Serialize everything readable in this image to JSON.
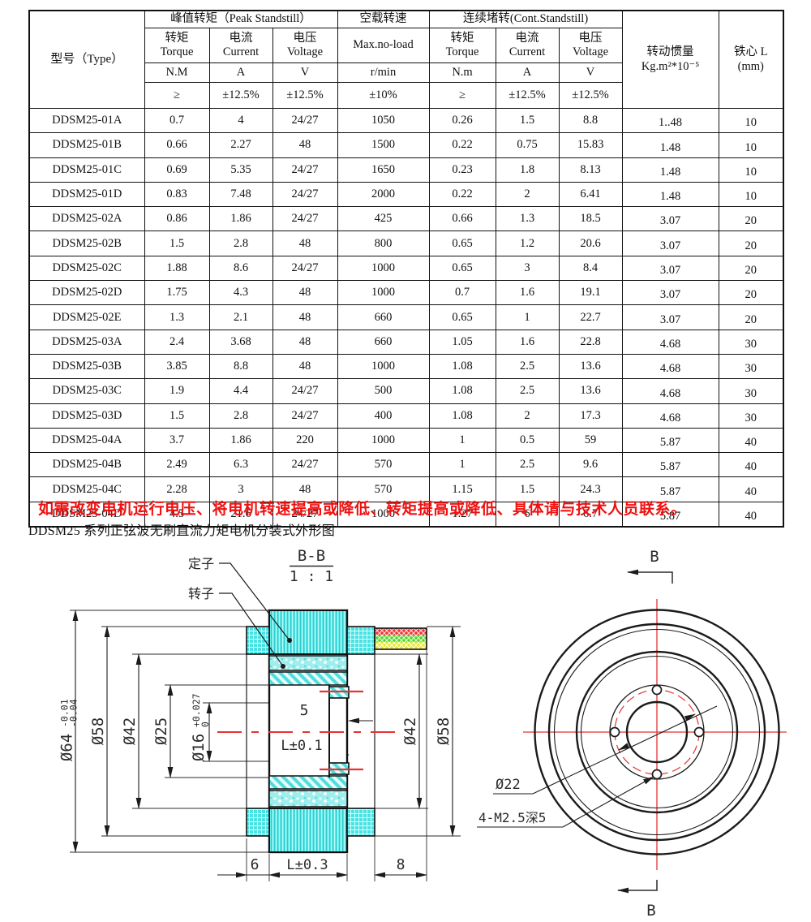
{
  "table": {
    "header": {
      "type": "型号（Type）",
      "peak_group": "峰值转矩（Peak Standstill）",
      "noload_cn": "空载转速",
      "noload_en": "Max.no-load",
      "cont_group": "连续堵转(Cont.Standstill)",
      "torque_cn": "转矩",
      "torque_en": "Torque",
      "current_cn": "电流",
      "current_en": "Current",
      "voltage_cn": "电压",
      "voltage_en": "Voltage",
      "unit_torque_peak": "N.M",
      "unit_current": "A",
      "unit_voltage": "V",
      "unit_speed": "r/min",
      "unit_torque_cont": "N.m",
      "tol_torque": "≥",
      "tol_current": "±12.5%",
      "tol_voltage": "±12.5%",
      "tol_speed": "±10%",
      "inertia_cn": "转动惯量",
      "inertia_unit": "Kg.m²*10⁻⁵",
      "core_cn": "铁心 L",
      "core_unit": "(mm)"
    },
    "rows": [
      [
        "DDSM25-01A",
        "0.7",
        "4",
        "24/27",
        "1050",
        "0.26",
        "1.5",
        "8.8",
        "1..48",
        "10"
      ],
      [
        "DDSM25-01B",
        "0.66",
        "2.27",
        "48",
        "1500",
        "0.22",
        "0.75",
        "15.83",
        "1.48",
        "10"
      ],
      [
        "DDSM25-01C",
        "0.69",
        "5.35",
        "24/27",
        "1650",
        "0.23",
        "1.8",
        "8.13",
        "1.48",
        "10"
      ],
      [
        "DDSM25-01D",
        "0.83",
        "7.48",
        "24/27",
        "2000",
        "0.22",
        "2",
        "6.41",
        "1.48",
        "10"
      ],
      [
        "DDSM25-02A",
        "0.86",
        "1.86",
        "24/27",
        "425",
        "0.66",
        "1.3",
        "18.5",
        "3.07",
        "20"
      ],
      [
        "DDSM25-02B",
        "1.5",
        "2.8",
        "48",
        "800",
        "0.65",
        "1.2",
        "20.6",
        "3.07",
        "20"
      ],
      [
        "DDSM25-02C",
        "1.88",
        "8.6",
        "24/27",
        "1000",
        "0.65",
        "3",
        "8.4",
        "3.07",
        "20"
      ],
      [
        "DDSM25-02D",
        "1.75",
        "4.3",
        "48",
        "1000",
        "0.7",
        "1.6",
        "19.1",
        "3.07",
        "20"
      ],
      [
        "DDSM25-02E",
        "1.3",
        "2.1",
        "48",
        "660",
        "0.65",
        "1",
        "22.7",
        "3.07",
        "20"
      ],
      [
        "DDSM25-03A",
        "2.4",
        "3.68",
        "48",
        "660",
        "1.05",
        "1.6",
        "22.8",
        "4.68",
        "30"
      ],
      [
        "DDSM25-03B",
        "3.85",
        "8.8",
        "48",
        "1000",
        "1.08",
        "2.5",
        "13.6",
        "4.68",
        "30"
      ],
      [
        "DDSM25-03C",
        "1.9",
        "4.4",
        "24/27",
        "500",
        "1.08",
        "2.5",
        "13.6",
        "4.68",
        "30"
      ],
      [
        "DDSM25-03D",
        "1.5",
        "2.8",
        "24/27",
        "400",
        "1.08",
        "2",
        "17.3",
        "4.68",
        "30"
      ],
      [
        "DDSM25-04A",
        "3.7",
        "1.86",
        "220",
        "1000",
        "1",
        "0.5",
        "59",
        "5.87",
        "40"
      ],
      [
        "DDSM25-04B",
        "2.49",
        "6.3",
        "24/27",
        "570",
        "1",
        "2.5",
        "9.6",
        "5.87",
        "40"
      ],
      [
        "DDSM25-04C",
        "2.28",
        "3",
        "48",
        "570",
        "1.15",
        "1.5",
        "24.3",
        "5.87",
        "40"
      ],
      [
        "DDSM25-04D",
        "4.5",
        "21.6",
        "24/27",
        "1000",
        "1.27",
        "6",
        "6.7",
        "5.87",
        "40"
      ]
    ]
  },
  "notes": {
    "warning": "如需改变电机运行电压、将电机转速提高或降低、转矩提高或降低、具体请与技术人员联系。",
    "caption": "DDSM25 系列正弦波无刷直流力矩电机分装式外形图"
  },
  "drawing": {
    "section_title": "B-B",
    "section_scale": "1 : 1",
    "label_stator": "定子",
    "label_rotor": "转子",
    "view_marker": "B",
    "dims": {
      "d64": "Ø64",
      "d64_tol_up": "-0.01",
      "d64_tol_dn": "-0.04",
      "d58_left": "Ø58",
      "d42_left": "Ø42",
      "d25": "Ø25",
      "d16": "Ø16",
      "d16_tol_up": "+0.027",
      "d16_tol_dn": "0",
      "w5": "5",
      "l_tol_inner": "L±0.1",
      "w6": "6",
      "l_tol_stack": "L±0.3",
      "w8": "8",
      "d42_right": "Ø42",
      "d58_right": "Ø58",
      "d22": "Ø22",
      "holes": "4-M2.5深5"
    },
    "colors": {
      "line": "#1b1b1b",
      "centerline_red": "#e63232",
      "fill_cyan": "#5ae8e8",
      "wire_red": "#ee3333",
      "wire_green": "#4fd42c",
      "wire_yellow": "#e8e82e"
    }
  }
}
